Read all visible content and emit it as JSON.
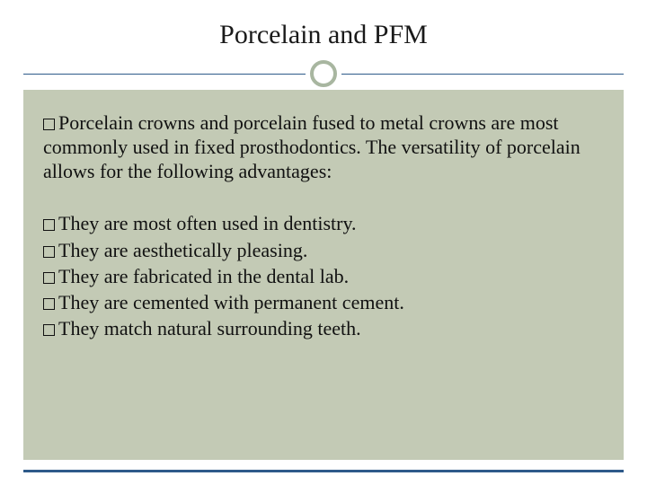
{
  "slide": {
    "title": "Porcelain and PFM",
    "title_fontsize": 30,
    "title_color": "#1a1a1a",
    "intro": "Porcelain crowns and porcelain fused to metal crowns are most commonly used in fixed prosthodontics. The versatility of porcelain allows for the following advantages:",
    "bullets": [
      "They are most often used in dentistry.",
      "They are aesthetically pleasing.",
      "They are fabricated in the dental lab.",
      "They are cemented with permanent cement.",
      "They match natural surrounding teeth."
    ],
    "body_fontsize": 22,
    "body_color": "#111111",
    "content_bg": "#c3cab5",
    "accent_line_color": "#2e5a8a",
    "circle_border_color": "#a8b6a0",
    "page_bg": "#ffffff",
    "bullet_marker": "square-outline"
  }
}
